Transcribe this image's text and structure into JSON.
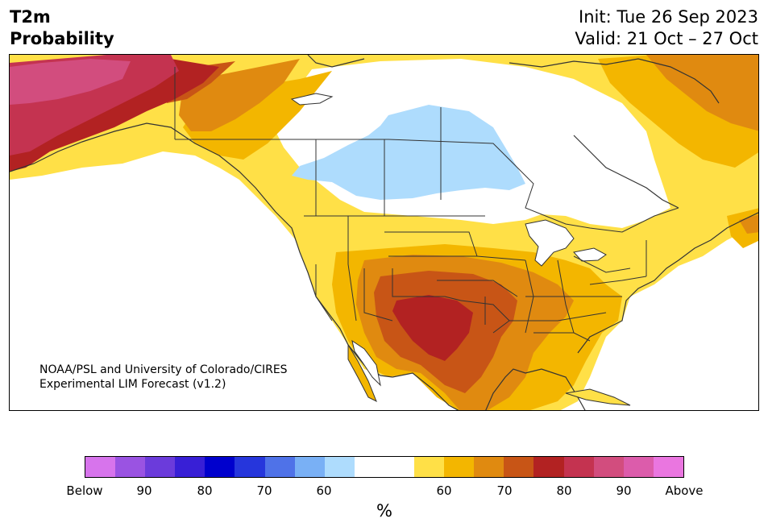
{
  "title": {
    "line1": "T2m",
    "line2": "Probability"
  },
  "dates": {
    "init": "Init: Tue 26 Sep 2023",
    "valid": "Valid: 21 Oct – 27 Oct"
  },
  "credit": {
    "line1": "NOAA/PSL and University of Colorado/CIRES",
    "line2": "Experimental LIM Forecast (v1.2)"
  },
  "colorbar": {
    "colors": [
      "#d774ec",
      "#9a53e2",
      "#6b3bdb",
      "#381fd6",
      "#0000cd",
      "#2636dc",
      "#4f72e8",
      "#79b0f5",
      "#aedcfd",
      "#ffffff",
      "#ffffff",
      "#ffe047",
      "#f3b600",
      "#e08a10",
      "#c85516",
      "#b22222",
      "#c43350",
      "#d24d7e",
      "#dc5cab",
      "#ea76e0"
    ],
    "labels": [
      "Below",
      "90",
      "80",
      "70",
      "60",
      "60",
      "70",
      "80",
      "90",
      "Above"
    ],
    "unit": "%"
  },
  "palette": {
    "yellow": "#ffe047",
    "gold": "#f3b600",
    "orange": "#e08a10",
    "burnt": "#c85516",
    "red": "#b22222",
    "crimson": "#c43350",
    "magenta": "#d24d7e",
    "pink": "#dc5cab",
    "lightblue": "#aedcfd",
    "border": "#333333"
  }
}
